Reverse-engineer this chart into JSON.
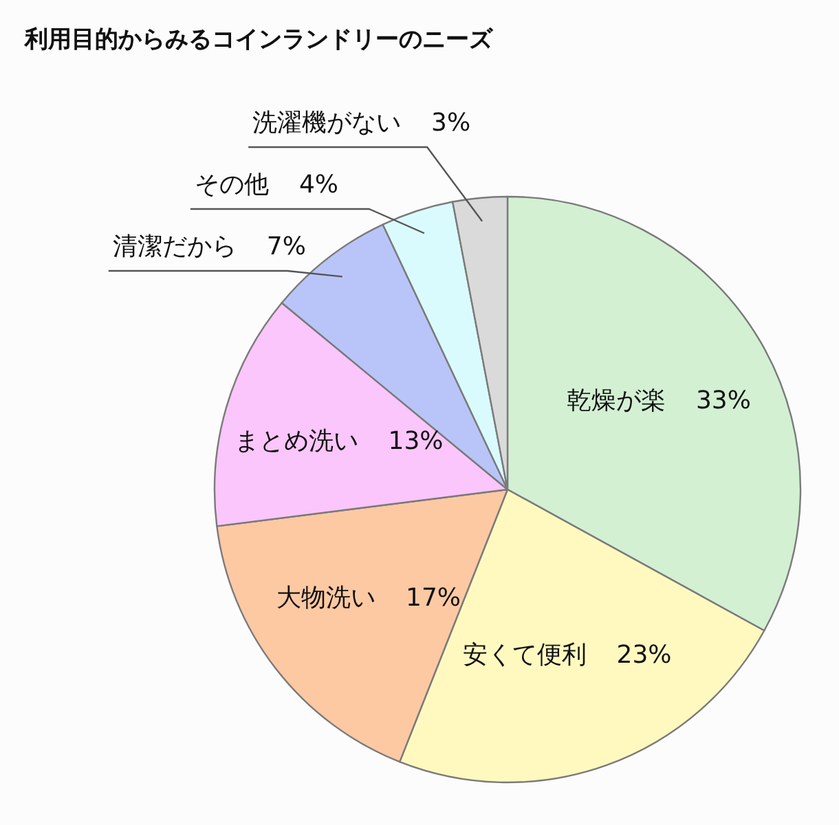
{
  "chart_data": {
    "type": "pie",
    "title": "利用目的からみるコインランドリーのニーズ",
    "categories": [
      "乾燥が楽",
      "安くて便利",
      "大物洗い",
      "まとめ洗い",
      "清潔だから",
      "その他",
      "洗濯機がない"
    ],
    "values": [
      33,
      23,
      17,
      13,
      7,
      4,
      3
    ],
    "value_labels": [
      "33%",
      "23%",
      "17%",
      "13%",
      "7%",
      "4%",
      "3%"
    ],
    "colors": [
      "#d3f0d3",
      "#fff9bf",
      "#fdc9a3",
      "#fbc6fb",
      "#b9c5f8",
      "#dafbfd",
      "#dadada"
    ]
  }
}
